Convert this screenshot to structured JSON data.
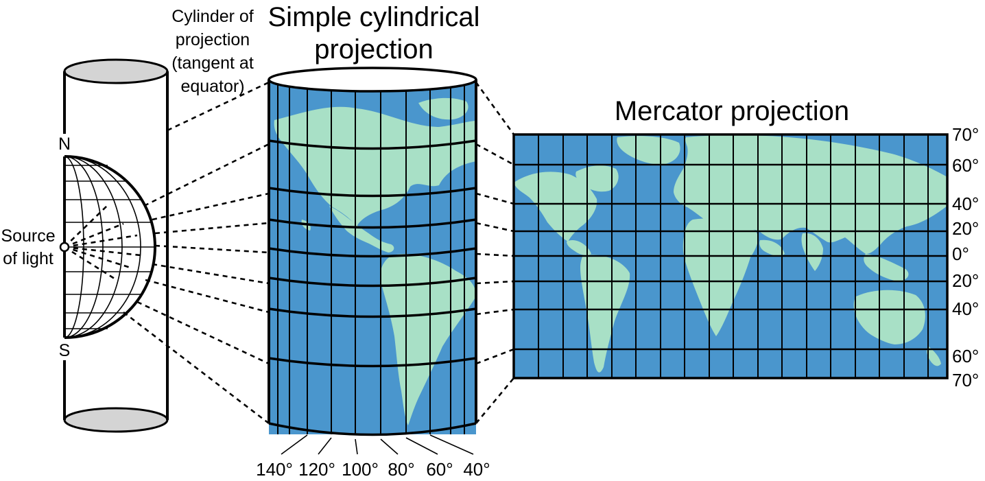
{
  "titles": {
    "simple": [
      "Simple cylindrical",
      "projection"
    ],
    "mercator": "Mercator projection"
  },
  "cylinder_label": [
    "Cylinder of",
    "projection",
    "(tangent at",
    "equator)"
  ],
  "source_label": [
    "Source",
    "of light"
  ],
  "poles": {
    "north": "N",
    "south": "S"
  },
  "mercator_latitudes": [
    "70°",
    "60°",
    "40°",
    "20°",
    "0°",
    "20°",
    "40°",
    "60°",
    "70°"
  ],
  "cylinder_longitudes": [
    "140°",
    "120°",
    "100°",
    "80°",
    "60°",
    "40°"
  ],
  "colors": {
    "ocean": "#4a96cd",
    "land": "#a8e0c6",
    "cap": "#d4d4d4",
    "lines": "#000000"
  }
}
